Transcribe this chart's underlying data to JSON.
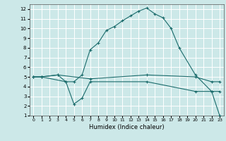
{
  "xlabel": "Humidex (Indice chaleur)",
  "bg_color": "#cce8e8",
  "grid_color": "#ffffff",
  "line_color": "#1a6b6b",
  "xlim": [
    -0.5,
    23.5
  ],
  "ylim": [
    1,
    12.5
  ],
  "xticks": [
    0,
    1,
    2,
    3,
    4,
    5,
    6,
    7,
    8,
    9,
    10,
    11,
    12,
    13,
    14,
    15,
    16,
    17,
    18,
    19,
    20,
    21,
    22,
    23
  ],
  "yticks": [
    1,
    2,
    3,
    4,
    5,
    6,
    7,
    8,
    9,
    10,
    11,
    12
  ],
  "series1_x": [
    0,
    1,
    3,
    4,
    5,
    6,
    7,
    8,
    9,
    10,
    11,
    12,
    13,
    14,
    15,
    16,
    17,
    18,
    20,
    22,
    23
  ],
  "series1_y": [
    5,
    5,
    5.2,
    4.5,
    4.5,
    5.2,
    7.8,
    8.5,
    9.8,
    10.2,
    10.8,
    11.3,
    11.8,
    12.1,
    11.5,
    11.1,
    10.0,
    8.0,
    5.2,
    3.5,
    3.5
  ],
  "series2_x": [
    0,
    1,
    3,
    7,
    14,
    20,
    22,
    23
  ],
  "series2_y": [
    5,
    5,
    5.2,
    4.8,
    5.2,
    5.0,
    4.5,
    4.5
  ],
  "series3_x": [
    0,
    1,
    4,
    5,
    6,
    7,
    14,
    20,
    22,
    23
  ],
  "series3_y": [
    5,
    5,
    4.5,
    2.2,
    2.8,
    4.5,
    4.5,
    3.5,
    3.5,
    1.0
  ]
}
